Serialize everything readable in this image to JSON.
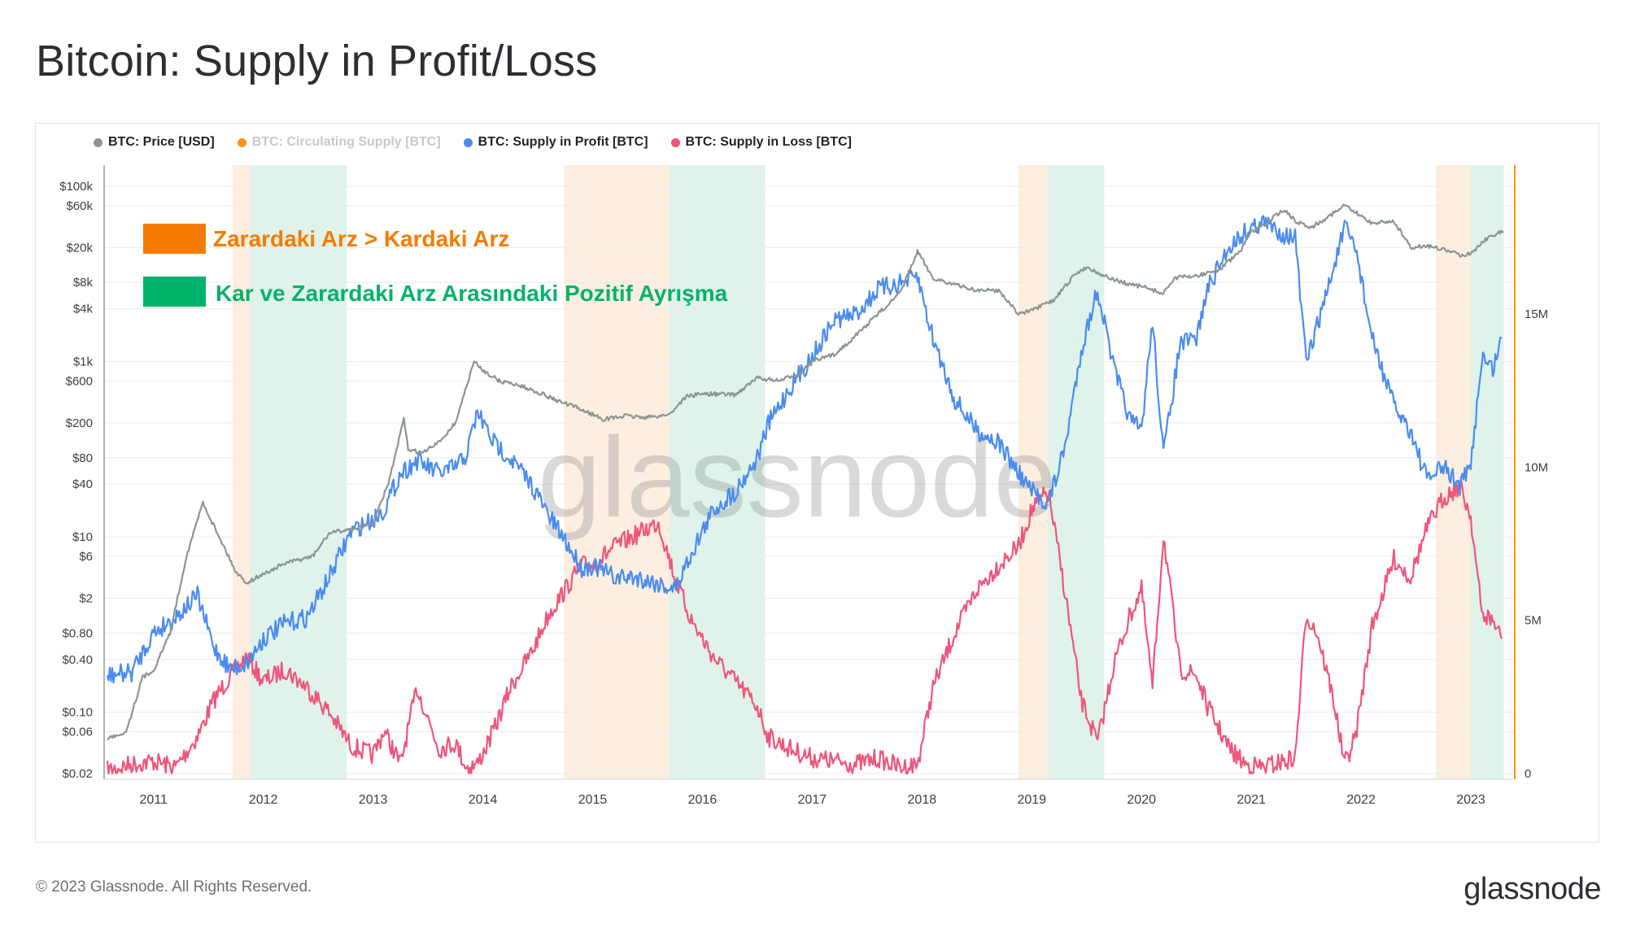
{
  "title": "Bitcoin: Supply in Profit/Loss",
  "legend": [
    {
      "label": "BTC: Price [USD]",
      "color": "#8c9690",
      "muted": false
    },
    {
      "label": "BTC: Circulating Supply [BTC]",
      "color": "#f7931a",
      "muted": true
    },
    {
      "label": "BTC: Supply in Profit [BTC]",
      "color": "#4a8cf0",
      "muted": false
    },
    {
      "label": "BTC: Supply in Loss [BTC]",
      "color": "#f0557a",
      "muted": false
    }
  ],
  "annotations": {
    "orange_label": "Zarardaki Arz > Kardaki Arz",
    "green_label": "Kar ve Zarardaki Arz Arasındaki Pozitif Ayrışma",
    "orange_color": "#f57c00",
    "green_color": "#00b36b"
  },
  "watermark": "glassnode",
  "footer": {
    "copyright": "© 2023 Glassnode. All Rights Reserved.",
    "logo": "glassnode"
  },
  "chart_data": {
    "type": "line",
    "x_ticks": [
      "2011",
      "2012",
      "2013",
      "2014",
      "2015",
      "2016",
      "2017",
      "2018",
      "2019",
      "2020",
      "2021",
      "2022",
      "2023"
    ],
    "x_range": [
      2010.55,
      2023.4
    ],
    "left_axis": {
      "scale": "log",
      "tick_labels": [
        "$100k",
        "$60k",
        "$20k",
        "$8k",
        "$4k",
        "$1k",
        "$600",
        "$200",
        "$80",
        "$40",
        "$10",
        "$6",
        "$2",
        "$0.80",
        "$0.40",
        "$0.10",
        "$0.06",
        "$0.02"
      ],
      "tick_values": [
        100000,
        60000,
        20000,
        8000,
        4000,
        1000,
        600,
        200,
        80,
        40,
        10,
        6,
        2,
        0.8,
        0.4,
        0.1,
        0.06,
        0.02
      ],
      "range": [
        0.02,
        100000
      ]
    },
    "right_axis": {
      "scale": "linear",
      "tick_labels": [
        "15M",
        "10M",
        "5M",
        "0"
      ],
      "tick_values": [
        15000000,
        10000000,
        5000000,
        0
      ],
      "range": [
        0,
        19500000
      ]
    },
    "shaded_periods": [
      {
        "kind": "orange",
        "start": 2011.72,
        "end": 2011.88
      },
      {
        "kind": "green",
        "start": 2011.88,
        "end": 2012.76
      },
      {
        "kind": "orange",
        "start": 2014.74,
        "end": 2015.7
      },
      {
        "kind": "green",
        "start": 2015.7,
        "end": 2016.57
      },
      {
        "kind": "orange",
        "start": 2018.88,
        "end": 2019.15
      },
      {
        "kind": "green",
        "start": 2019.15,
        "end": 2019.66
      },
      {
        "kind": "orange",
        "start": 2022.68,
        "end": 2023.0
      },
      {
        "kind": "green",
        "start": 2023.0,
        "end": 2023.3
      }
    ],
    "series": [
      {
        "name": "BTC: Price [USD]",
        "axis": "left",
        "color": "#8c9690",
        "x": [
          2010.58,
          2010.75,
          2010.9,
          2011.0,
          2011.15,
          2011.3,
          2011.45,
          2011.5,
          2011.6,
          2011.75,
          2011.85,
          2011.95,
          2012.2,
          2012.45,
          2012.6,
          2012.75,
          2012.9,
          2013.0,
          2013.15,
          2013.28,
          2013.32,
          2013.45,
          2013.6,
          2013.75,
          2013.92,
          2014.0,
          2014.15,
          2014.3,
          2014.5,
          2014.7,
          2014.85,
          2015.0,
          2015.1,
          2015.3,
          2015.5,
          2015.7,
          2015.85,
          2016.0,
          2016.3,
          2016.5,
          2016.7,
          2016.9,
          2017.0,
          2017.2,
          2017.4,
          2017.6,
          2017.8,
          2017.96,
          2018.1,
          2018.3,
          2018.5,
          2018.7,
          2018.88,
          2019.0,
          2019.2,
          2019.4,
          2019.5,
          2019.7,
          2019.9,
          2020.0,
          2020.2,
          2020.3,
          2020.5,
          2020.7,
          2020.9,
          2021.0,
          2021.1,
          2021.3,
          2021.4,
          2021.55,
          2021.7,
          2021.85,
          2021.95,
          2022.1,
          2022.3,
          2022.45,
          2022.6,
          2022.75,
          2022.9,
          2023.0,
          2023.1,
          2023.2,
          2023.3
        ],
        "y": [
          0.05,
          0.06,
          0.25,
          0.3,
          0.8,
          6,
          25,
          18,
          10,
          4,
          3,
          3.5,
          5,
          6,
          11,
          12,
          13,
          14,
          45,
          220,
          100,
          90,
          120,
          200,
          1000,
          800,
          600,
          550,
          450,
          350,
          300,
          250,
          220,
          240,
          230,
          250,
          400,
          430,
          420,
          650,
          600,
          750,
          1000,
          1200,
          2000,
          3500,
          6000,
          18000,
          9000,
          7500,
          6500,
          6500,
          3500,
          3800,
          5000,
          10000,
          12000,
          9000,
          7500,
          7200,
          6000,
          9000,
          9500,
          11000,
          18000,
          30000,
          35000,
          55000,
          40000,
          34000,
          45000,
          60000,
          50000,
          38000,
          40000,
          20000,
          21000,
          19000,
          16500,
          17000,
          23000,
          28000,
          30000
        ]
      },
      {
        "name": "BTC: Supply in Profit [BTC]",
        "axis": "right",
        "color": "#4a8cf0",
        "x": [
          2010.58,
          2010.8,
          2011.0,
          2011.2,
          2011.4,
          2011.55,
          2011.7,
          2011.85,
          2012.0,
          2012.2,
          2012.4,
          2012.6,
          2012.8,
          2013.0,
          2013.1,
          2013.25,
          2013.4,
          2013.6,
          2013.75,
          2013.85,
          2013.95,
          2014.1,
          2014.25,
          2014.45,
          2014.6,
          2014.75,
          2014.9,
          2015.0,
          2015.2,
          2015.4,
          2015.6,
          2015.75,
          2015.9,
          2016.1,
          2016.3,
          2016.5,
          2016.6,
          2016.8,
          2017.0,
          2017.2,
          2017.4,
          2017.6,
          2017.8,
          2017.96,
          2018.1,
          2018.3,
          2018.5,
          2018.7,
          2018.88,
          2019.0,
          2019.15,
          2019.3,
          2019.45,
          2019.6,
          2019.75,
          2019.9,
          2020.0,
          2020.1,
          2020.2,
          2020.35,
          2020.5,
          2020.6,
          2020.8,
          2020.95,
          2021.1,
          2021.3,
          2021.4,
          2021.5,
          2021.6,
          2021.75,
          2021.85,
          2021.95,
          2022.1,
          2022.3,
          2022.45,
          2022.6,
          2022.75,
          2022.9,
          2023.0,
          2023.1,
          2023.2,
          2023.28
        ],
        "y": [
          3.2,
          3.3,
          4.6,
          5.1,
          5.8,
          4.1,
          3.4,
          3.6,
          4.4,
          4.9,
          5.1,
          6.4,
          7.9,
          8.3,
          8.6,
          9.8,
          10.2,
          9.8,
          10.0,
          10.4,
          11.8,
          10.8,
          10.3,
          9.4,
          8.4,
          7.6,
          6.7,
          6.8,
          6.4,
          6.4,
          6.2,
          6.0,
          7.2,
          8.6,
          9.2,
          10.3,
          11.4,
          12.6,
          13.6,
          14.8,
          15.0,
          15.8,
          16.0,
          16.2,
          14.2,
          12.2,
          11.2,
          10.8,
          9.8,
          9.2,
          8.8,
          10.6,
          13.8,
          15.8,
          13.2,
          11.5,
          11.2,
          14.8,
          10.4,
          14.0,
          14.2,
          15.8,
          17.2,
          17.7,
          18.0,
          17.6,
          17.5,
          13.4,
          14.6,
          16.5,
          17.8,
          17.2,
          14.2,
          12.0,
          11.2,
          9.6,
          10.0,
          9.4,
          10.0,
          13.6,
          13.2,
          14.2
        ]
      },
      {
        "name": "BTC: Supply in Loss [BTC]",
        "axis": "right",
        "color": "#f0557a",
        "x": [
          2010.58,
          2010.8,
          2011.0,
          2011.2,
          2011.4,
          2011.55,
          2011.7,
          2011.85,
          2012.0,
          2012.2,
          2012.4,
          2012.6,
          2012.8,
          2013.0,
          2013.1,
          2013.25,
          2013.4,
          2013.6,
          2013.75,
          2013.85,
          2013.95,
          2014.1,
          2014.25,
          2014.45,
          2014.6,
          2014.75,
          2014.9,
          2015.0,
          2015.2,
          2015.4,
          2015.6,
          2015.75,
          2015.9,
          2016.1,
          2016.3,
          2016.5,
          2016.6,
          2016.8,
          2017.0,
          2017.2,
          2017.4,
          2017.6,
          2017.8,
          2017.96,
          2018.1,
          2018.3,
          2018.5,
          2018.7,
          2018.88,
          2019.0,
          2019.15,
          2019.3,
          2019.45,
          2019.6,
          2019.75,
          2019.9,
          2020.0,
          2020.1,
          2020.2,
          2020.35,
          2020.5,
          2020.6,
          2020.8,
          2020.95,
          2021.1,
          2021.3,
          2021.4,
          2021.5,
          2021.6,
          2021.75,
          2021.85,
          2021.95,
          2022.1,
          2022.3,
          2022.45,
          2022.6,
          2022.75,
          2022.9,
          2023.0,
          2023.1,
          2023.2,
          2023.28
        ],
        "y": [
          0.1,
          0.3,
          0.4,
          0.2,
          1.2,
          2.4,
          3.2,
          3.8,
          3.0,
          3.4,
          2.8,
          2.0,
          0.9,
          0.6,
          1.4,
          0.3,
          2.8,
          0.8,
          1.0,
          0.2,
          0.3,
          1.4,
          2.8,
          4.0,
          5.2,
          6.0,
          6.8,
          6.8,
          7.4,
          7.8,
          8.2,
          6.4,
          5.0,
          3.8,
          3.0,
          2.2,
          1.2,
          0.8,
          0.5,
          0.4,
          0.3,
          0.5,
          0.2,
          0.3,
          2.8,
          4.6,
          6.0,
          6.8,
          7.4,
          8.6,
          9.2,
          6.0,
          2.4,
          1.0,
          3.6,
          5.2,
          6.0,
          2.8,
          7.8,
          3.4,
          3.2,
          2.2,
          0.8,
          0.3,
          0.2,
          0.4,
          0.5,
          5.2,
          4.6,
          2.4,
          0.3,
          1.2,
          4.8,
          7.0,
          6.4,
          8.0,
          9.0,
          9.4,
          8.4,
          5.2,
          5.0,
          4.4
        ]
      }
    ]
  }
}
